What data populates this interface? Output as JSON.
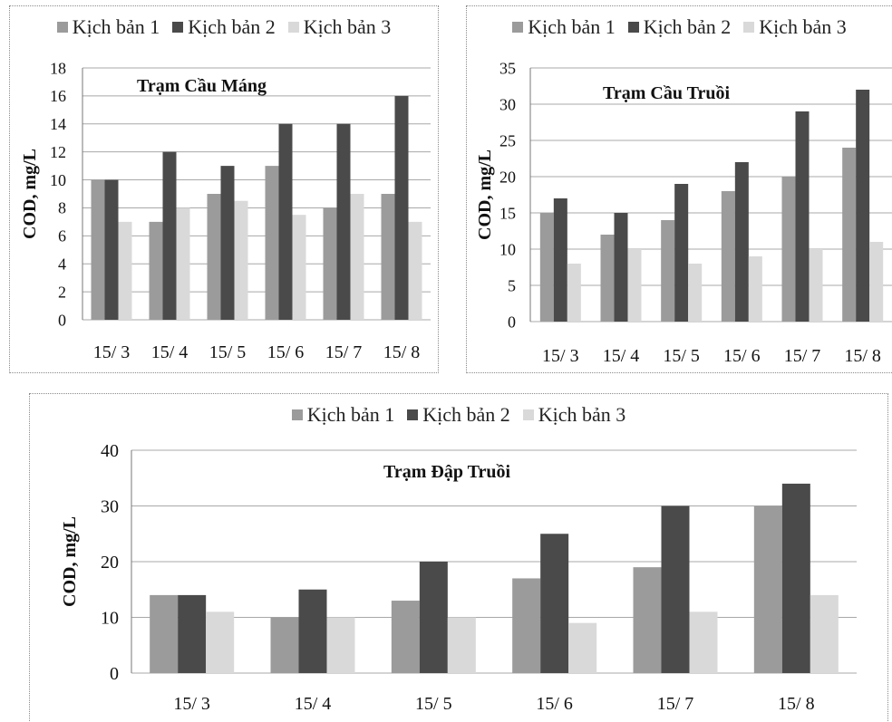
{
  "colors": {
    "series": [
      "#9b9b9b",
      "#4a4a4a",
      "#d9d9d9"
    ],
    "grid": "#a8a8a8"
  },
  "chart_data": [
    {
      "type": "bar",
      "title": "Trạm  Cầu Máng",
      "ylabel": "COD, mg/L",
      "categories": [
        "15/ 3",
        "15/ 4",
        "15/ 5",
        "15/ 6",
        "15/ 7",
        "15/ 8"
      ],
      "series": [
        {
          "name": "Kịch bản 1",
          "values": [
            10,
            7,
            9,
            11,
            8,
            9
          ]
        },
        {
          "name": "Kịch bản 2",
          "values": [
            10,
            12,
            11,
            14,
            14,
            16
          ]
        },
        {
          "name": "Kịch bản 3",
          "values": [
            7,
            8,
            8.5,
            7.5,
            9,
            7
          ]
        }
      ],
      "ylim": [
        0,
        18
      ],
      "yticks": [
        "0",
        "2",
        "4",
        "6",
        "8",
        "10",
        "12",
        "14",
        "16",
        "18"
      ],
      "grid": true,
      "legend": "top"
    },
    {
      "type": "bar",
      "title": "Trạm  Cầu  Truồi",
      "ylabel": "COD, mg/L",
      "categories": [
        "15/ 3",
        "15/ 4",
        "15/ 5",
        "15/ 6",
        "15/ 7",
        "15/ 8"
      ],
      "series": [
        {
          "name": "Kịch bản 1",
          "values": [
            15,
            12,
            14,
            18,
            20,
            24
          ]
        },
        {
          "name": "Kịch bản 2",
          "values": [
            17,
            15,
            19,
            22,
            29,
            32
          ]
        },
        {
          "name": "Kịch bản 3",
          "values": [
            8,
            10,
            8,
            9,
            10,
            11
          ]
        }
      ],
      "ylim": [
        0,
        35
      ],
      "yticks": [
        "0",
        "5",
        "10",
        "15",
        "20",
        "25",
        "30",
        "35"
      ],
      "grid": true,
      "legend": "top"
    },
    {
      "type": "bar",
      "title": "Trạm Đập Truồi",
      "ylabel": "COD, mg/L",
      "categories": [
        "15/ 3",
        "15/ 4",
        "15/ 5",
        "15/ 6",
        "15/ 7",
        "15/ 8"
      ],
      "series": [
        {
          "name": "Kịch bản 1",
          "values": [
            14,
            10,
            13,
            17,
            19,
            30
          ]
        },
        {
          "name": "Kịch bản 2",
          "values": [
            14,
            15,
            20,
            25,
            30,
            34
          ]
        },
        {
          "name": "Kịch bản 3",
          "values": [
            11,
            10,
            10,
            9,
            11,
            14
          ]
        }
      ],
      "ylim": [
        0,
        40
      ],
      "yticks": [
        "0",
        "10",
        "20",
        "30",
        "40"
      ],
      "grid": true,
      "legend": "top"
    }
  ]
}
